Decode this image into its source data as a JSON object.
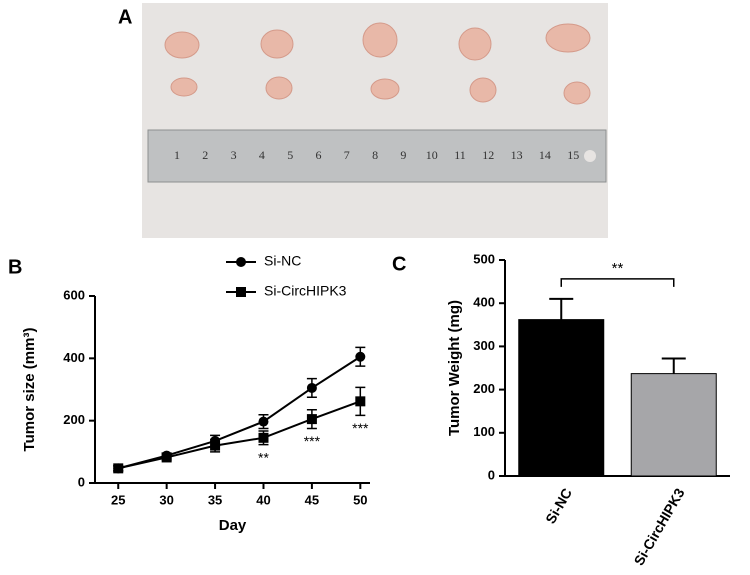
{
  "photo": {
    "panel_label": "A",
    "ruler_labels": [
      "1",
      "2",
      "3",
      "4",
      "5",
      "6",
      "7",
      "8",
      "9",
      "10",
      "11",
      "12",
      "13",
      "14",
      "15"
    ]
  },
  "chart_data": [
    {
      "type": "line",
      "panel_label": "B",
      "xlabel": "Day",
      "ylabel": "Tumor size (mm³)",
      "x": [
        25,
        30,
        35,
        40,
        45,
        50
      ],
      "series": [
        {
          "name": "Si-NC",
          "color": "#000000",
          "marker": "circle",
          "values": [
            47,
            88,
            135,
            197,
            305,
            405
          ],
          "errors": [
            8,
            8,
            18,
            22,
            30,
            30
          ]
        },
        {
          "name": "Si-CircHIPK3",
          "color": "#000000",
          "marker": "square",
          "values": [
            47,
            82,
            120,
            145,
            205,
            262
          ],
          "errors": [
            8,
            8,
            20,
            22,
            30,
            45
          ]
        }
      ],
      "annotations": [
        {
          "x": 40,
          "text": "**"
        },
        {
          "x": 45,
          "text": "***"
        },
        {
          "x": 50,
          "text": "***"
        }
      ],
      "xlim": [
        22.6,
        51
      ],
      "xticks": [
        25,
        30,
        35,
        40,
        45,
        50
      ],
      "ylim": [
        0,
        600
      ],
      "yticks": [
        0,
        200,
        400,
        600
      ],
      "legend": "top"
    },
    {
      "type": "bar",
      "panel_label": "C",
      "ylabel": "Tumor Weight (mg)",
      "categories": [
        "Si-NC",
        "Si-CircHIPK3"
      ],
      "values": [
        362,
        237
      ],
      "errors": [
        48,
        35
      ],
      "colors": [
        "#000000",
        "#a6a6a9"
      ],
      "annotations": [
        {
          "text": "**"
        }
      ],
      "ylim": [
        0,
        500
      ],
      "yticks": [
        0,
        100,
        200,
        300,
        400,
        500
      ]
    }
  ]
}
